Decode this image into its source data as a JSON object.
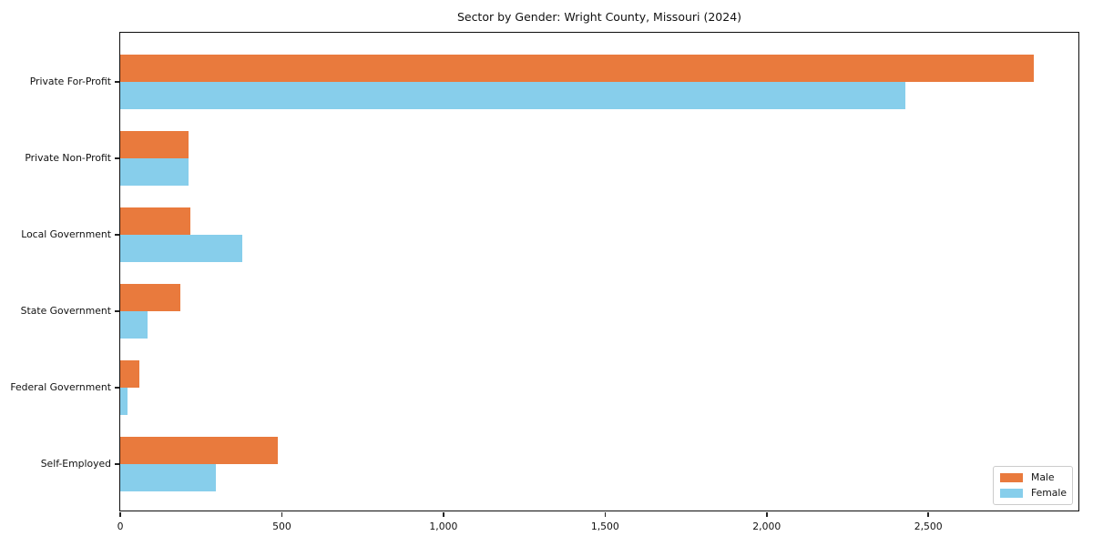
{
  "title": "Sector by Gender: Wright County, Missouri (2024)",
  "chart_data": {
    "type": "bar",
    "orientation": "horizontal",
    "title": "Sector by Gender: Wright County, Missouri (2024)",
    "categories": [
      "Private For-Profit",
      "Private Non-Profit",
      "Local Government",
      "State Government",
      "Federal Government",
      "Self-Employed"
    ],
    "series": [
      {
        "name": "Male",
        "color": "#e97a3d",
        "values": [
          2825,
          212,
          218,
          186,
          58,
          488
        ]
      },
      {
        "name": "Female",
        "color": "#87ceeb",
        "values": [
          2430,
          212,
          378,
          83,
          21,
          297
        ]
      }
    ],
    "xlabel": "",
    "ylabel": "",
    "xlim": [
      0,
      2970
    ],
    "x_ticks": [
      0,
      500,
      1000,
      1500,
      2000,
      2500
    ],
    "x_tick_labels": [
      "0",
      "500",
      "1,000",
      "1,500",
      "2,000",
      "2,500"
    ],
    "grid": false,
    "legend_position": "lower right"
  }
}
